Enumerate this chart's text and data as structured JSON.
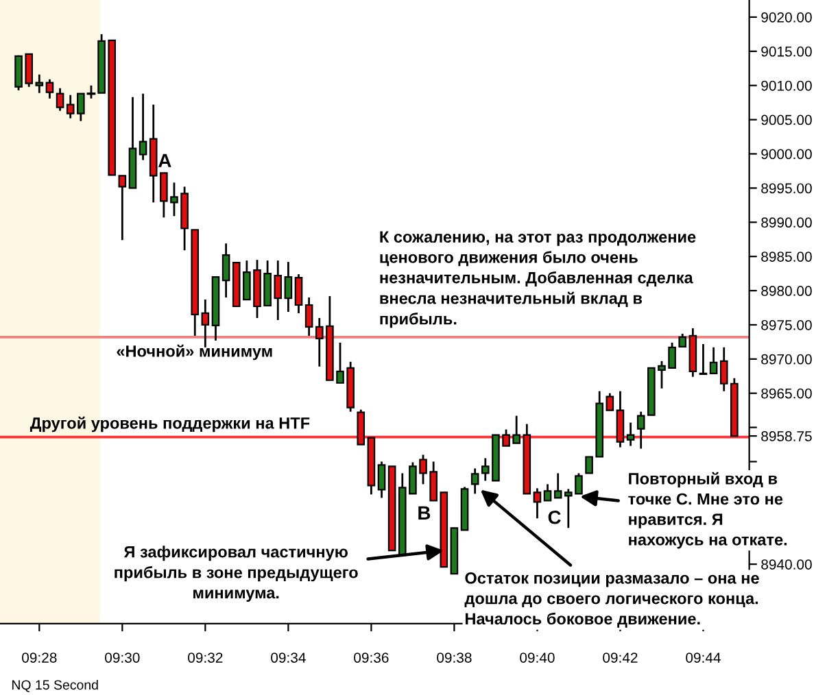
{
  "chart_data": {
    "type": "candlestick",
    "x": [
      9.45833,
      9.4625,
      9.46667,
      9.47083,
      9.475,
      9.47917,
      9.48333,
      9.4875,
      9.49167,
      9.49583,
      9.5,
      9.50417,
      9.50833,
      9.5125,
      9.51667,
      9.52083,
      9.525,
      9.52917,
      9.53333,
      9.5375,
      9.54167,
      9.54583,
      9.55,
      9.55417,
      9.55833,
      9.5625,
      9.56667,
      9.57083,
      9.575,
      9.57917,
      9.58333,
      9.5875,
      9.59167,
      9.59583,
      9.6,
      9.60417,
      9.60833,
      9.6125,
      9.61667,
      9.62083,
      9.625,
      9.62917,
      9.63333,
      9.6375,
      9.64167,
      9.64583,
      9.65,
      9.65417,
      9.65833,
      9.6625,
      9.66667,
      9.67083,
      9.675,
      9.67917,
      9.68333,
      9.6875,
      9.69167,
      9.69583,
      9.7,
      9.70417,
      9.70833,
      9.7125,
      9.71667,
      9.72083,
      9.725,
      9.72917,
      9.73333,
      9.7375,
      9.74167,
      9.74583
    ],
    "ohlc": [
      [
        9009.8,
        9014.4,
        9009.3,
        9014.3
      ],
      [
        9014.6,
        9014.6,
        9009.8,
        9010.3
      ],
      [
        9010.0,
        9011.6,
        9008.9,
        9010.4
      ],
      [
        9010.4,
        9010.9,
        9008.1,
        9009.0
      ],
      [
        9008.8,
        9009.6,
        9006.3,
        9006.8
      ],
      [
        9007.2,
        9008.6,
        9005.2,
        9005.9
      ],
      [
        9005.9,
        9008.8,
        9004.8,
        9008.8
      ],
      [
        9008.8,
        9010.0,
        9008.1,
        9008.8
      ],
      [
        9008.9,
        9017.5,
        9008.9,
        9016.5
      ],
      [
        9016.6,
        9016.6,
        8996.9,
        8996.9
      ],
      [
        8996.8,
        8996.8,
        8987.4,
        8995.2
      ],
      [
        8995.0,
        9008.3,
        8995.0,
        9000.8
      ],
      [
        8999.9,
        9008.8,
        8999.1,
        9001.8
      ],
      [
        9002.2,
        9007.2,
        8992.9,
        8996.8
      ],
      [
        8997.2,
        8997.2,
        8990.7,
        8993.1
      ],
      [
        8992.9,
        8995.8,
        8990.9,
        8993.7
      ],
      [
        8994.2,
        8995.2,
        8985.9,
        8989.1
      ],
      [
        8988.9,
        8988.9,
        8973.4,
        8976.5
      ],
      [
        8976.7,
        8978.7,
        8971.7,
        8975.0
      ],
      [
        8974.9,
        8982.0,
        8972.7,
        8982.0
      ],
      [
        8981.5,
        8986.9,
        8979.0,
        8985.2
      ],
      [
        8984.1,
        8984.1,
        8977.7,
        8977.7
      ],
      [
        8978.7,
        8984.4,
        8978.7,
        8982.7
      ],
      [
        8983.0,
        8984.5,
        8976.0,
        8977.7
      ],
      [
        8977.8,
        8984.4,
        8977.8,
        8982.5
      ],
      [
        8982.2,
        8984.4,
        8975.7,
        8978.9
      ],
      [
        8978.9,
        8984.2,
        8976.9,
        8982.0
      ],
      [
        8981.9,
        8982.4,
        8976.7,
        8977.9
      ],
      [
        8977.9,
        8979.0,
        8973.4,
        8974.7
      ],
      [
        8974.7,
        8976.0,
        8968.9,
        8973.0
      ],
      [
        8974.8,
        8979.2,
        8966.9,
        8966.9
      ],
      [
        8966.5,
        8972.4,
        8966.5,
        8968.2
      ],
      [
        8968.7,
        8969.6,
        8962.3,
        8962.9
      ],
      [
        8962.2,
        8962.6,
        8957.5,
        8957.5
      ],
      [
        8958.5,
        8958.5,
        8950.2,
        8951.5
      ],
      [
        8950.9,
        8955.0,
        8949.7,
        8954.5
      ],
      [
        8954.3,
        8954.3,
        8942.0,
        8942.0
      ],
      [
        8941.3,
        8953.3,
        8941.3,
        8951.2
      ],
      [
        8950.3,
        8954.9,
        8950.3,
        8954.3
      ],
      [
        8955.3,
        8956.0,
        8951.7,
        8953.3
      ],
      [
        8953.5,
        8955.0,
        8949.3,
        8949.3
      ],
      [
        8950.5,
        8950.5,
        8939.6,
        8939.6
      ],
      [
        8938.6,
        8945.3,
        8938.6,
        8945.3
      ],
      [
        8945.0,
        8951.3,
        8945.0,
        8951.0
      ],
      [
        8951.7,
        8954.0,
        8950.3,
        8953.2
      ],
      [
        8953.3,
        8955.5,
        8952.2,
        8954.3
      ],
      [
        8952.2,
        8958.9,
        8952.2,
        8958.9
      ],
      [
        8958.9,
        8959.7,
        8957.3,
        8957.3
      ],
      [
        8957.7,
        8961.7,
        8957.7,
        8958.9
      ],
      [
        8958.9,
        8960.5,
        8950.3,
        8950.3
      ],
      [
        8950.5,
        8951.1,
        8946.7,
        8949.1
      ],
      [
        8949.3,
        8951.7,
        8949.3,
        8950.7
      ],
      [
        8949.7,
        8953.3,
        8949.7,
        8950.7
      ],
      [
        8950.0,
        8951.0,
        8945.3,
        8950.5
      ],
      [
        8950.3,
        8953.3,
        8950.3,
        8952.9
      ],
      [
        8953.3,
        8955.7,
        8953.3,
        8955.7
      ],
      [
        8955.7,
        8965.3,
        8955.7,
        8963.5
      ],
      [
        8964.5,
        8965.0,
        8962.5,
        8962.5
      ],
      [
        8962.5,
        8965.3,
        8957.1,
        8957.9
      ],
      [
        8958.2,
        8960.7,
        8957.3,
        8958.9
      ],
      [
        8959.8,
        8962.3,
        8956.9,
        8961.7
      ],
      [
        8961.8,
        8968.7,
        8961.8,
        8968.7
      ],
      [
        8968.4,
        8969.7,
        8965.7,
        8969.0
      ],
      [
        8968.7,
        8972.4,
        8968.7,
        8971.7
      ],
      [
        8971.8,
        8973.7,
        8971.8,
        8973.2
      ],
      [
        8973.4,
        8974.5,
        8967.4,
        8968.2
      ],
      [
        8967.8,
        8972.2,
        8967.8,
        8967.9
      ],
      [
        8967.9,
        8971.7,
        8967.9,
        8969.5
      ],
      [
        8969.7,
        8971.7,
        8965.3,
        8966.4
      ],
      [
        8966.4,
        8967.2,
        8958.75,
        8958.75
      ]
    ],
    "colors": [
      "#1f7a1f",
      "#e01010",
      "#1f7a1f",
      "#e01010",
      "#e01010",
      "#e01010",
      "#1f7a1f",
      "#000000",
      "#1f7a1f",
      "#e01010",
      "#e01010",
      "#1f7a1f",
      "#1f7a1f",
      "#e01010",
      "#e01010",
      "#1f7a1f",
      "#e01010",
      "#e01010",
      "#e01010",
      "#1f7a1f",
      "#1f7a1f",
      "#e01010",
      "#1f7a1f",
      "#e01010",
      "#1f7a1f",
      "#e01010",
      "#1f7a1f",
      "#e01010",
      "#e01010",
      "#e01010",
      "#e01010",
      "#1f7a1f",
      "#e01010",
      "#e01010",
      "#e01010",
      "#1f7a1f",
      "#e01010",
      "#1f7a1f",
      "#1f7a1f",
      "#e01010",
      "#e01010",
      "#e01010",
      "#1f7a1f",
      "#1f7a1f",
      "#1f7a1f",
      "#1f7a1f",
      "#1f7a1f",
      "#e01010",
      "#1f7a1f",
      "#e01010",
      "#e01010",
      "#1f7a1f",
      "#1f7a1f",
      "#1f7a1f",
      "#1f7a1f",
      "#1f7a1f",
      "#1f7a1f",
      "#e01010",
      "#e01010",
      "#1f7a1f",
      "#1f7a1f",
      "#1f7a1f",
      "#1f7a1f",
      "#1f7a1f",
      "#1f7a1f",
      "#e01010",
      "#1f7a1f",
      "#1f7a1f",
      "#e01010",
      "#e01010"
    ],
    "xlim": [
      9.45088,
      9.75183
    ],
    "xticks": [
      {
        "value": 9.46667,
        "label": "09:28"
      },
      {
        "value": 9.5,
        "label": "09:30"
      },
      {
        "value": 9.53333,
        "label": "09:32"
      },
      {
        "value": 9.56667,
        "label": "09:34"
      },
      {
        "value": 9.6,
        "label": "09:36"
      },
      {
        "value": 9.63333,
        "label": "09:38"
      },
      {
        "value": 9.66667,
        "label": "09:40"
      },
      {
        "value": 9.7,
        "label": "09:42"
      },
      {
        "value": 9.73333,
        "label": "09:44"
      }
    ],
    "ylim": [
      8931.3,
      9022.5
    ],
    "yticks": [
      {
        "value": 9020,
        "label": "9020.00"
      },
      {
        "value": 9015,
        "label": "9015.00"
      },
      {
        "value": 9010,
        "label": "9010.00"
      },
      {
        "value": 9005,
        "label": "9005.00"
      },
      {
        "value": 9000,
        "label": "9000.00"
      },
      {
        "value": 8995,
        "label": "8995.00"
      },
      {
        "value": 8990,
        "label": "8990.00"
      },
      {
        "value": 8985,
        "label": "8985.00"
      },
      {
        "value": 8980,
        "label": "8980.00"
      },
      {
        "value": 8975,
        "label": "8975.00"
      },
      {
        "value": 8970,
        "label": "8970.00"
      },
      {
        "value": 8965,
        "label": "8965.00"
      },
      {
        "value": 8960,
        "label": null
      },
      {
        "value": 8958.75,
        "label": "8958.75"
      },
      {
        "value": 8955,
        "label": null
      },
      {
        "value": 8950,
        "label": null
      },
      {
        "value": 8945,
        "label": null
      },
      {
        "value": 8940,
        "label": "8940.00"
      }
    ],
    "bands": [
      {
        "axis": "x",
        "from": 9.45088,
        "to": 9.491,
        "color": "#fdf7e4"
      }
    ],
    "ref_lines": [
      {
        "axis": "y",
        "value": 8973.2,
        "label": "«Ночной» минимум",
        "color": "#f08080"
      },
      {
        "axis": "y",
        "value": 8958.6,
        "label": "Другой уровень поддержки на HTF",
        "color": "#ff3030"
      }
    ],
    "annotations": [
      "A",
      "B",
      "C",
      "К сожалению, на этот раз продолжение\nценового движения было очень\nнезначительным. Добавленная сделка\nвнесла незначительный вклад в\nприбыль.",
      {
        "text": "Я зафиксировал частичную\nприбыль в зоне предыдущего\nминимума.",
        "x": 9.62917,
        "y": 8942.0
      },
      {
        "text": "Остаток позиции размазало – она не\nдошла до своего логического конца.\nНачалось боковое движение.",
        "x": 9.64383,
        "y": 8950.9
      },
      {
        "text": "Повторный вход в\nточке C. Мне это не\nнравится. Я\nнахожусь на откате.",
        "x": 9.68383,
        "y": 8949.9
      },
      "NQ 15 Second"
    ],
    "grid": false,
    "legend": false
  }
}
